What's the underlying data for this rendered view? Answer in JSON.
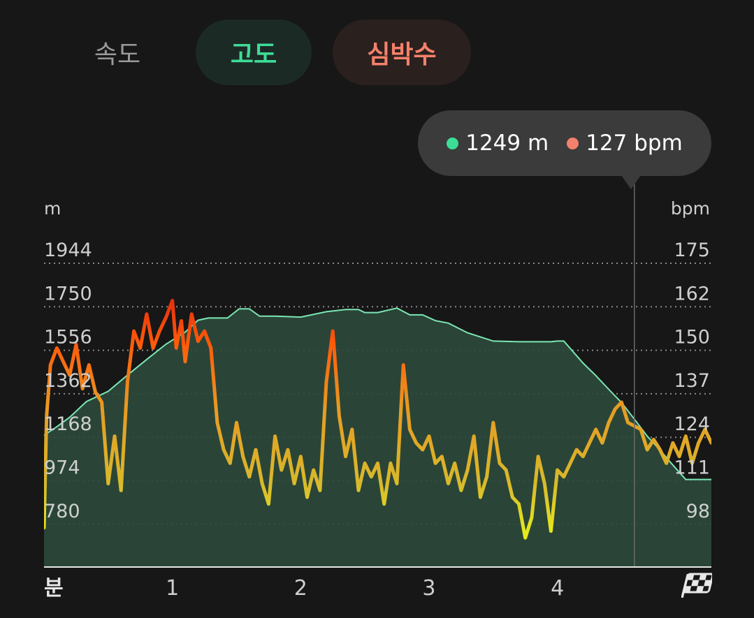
{
  "tabs": {
    "speed": "속도",
    "altitude": "고도",
    "heart_rate": "심박수"
  },
  "colors": {
    "altitude": "#3ddc97",
    "heart_rate": "#f4816b",
    "area_fill": "#2c4a3b",
    "text_muted": "#cfcfcf"
  },
  "tooltip": {
    "altitude_value": "1249 m",
    "heart_rate_value": "127 bpm",
    "time_min": 4.6
  },
  "finish_icon": "checkered-flag-icon",
  "chart_data": {
    "type": "area",
    "xlabel": "분",
    "ylabel_left": "m",
    "ylabel_right": "bpm",
    "x_range": [
      0,
      5.2
    ],
    "x_ticks": [
      1,
      2,
      3,
      4
    ],
    "x_tick_labels": [
      "1",
      "2",
      "3",
      "4"
    ],
    "y_left_range": [
      586,
      1944
    ],
    "y_right_range": [
      85,
      175
    ],
    "y_left_ticks": [
      1944,
      1750,
      1556,
      1362,
      1168,
      974,
      780
    ],
    "y_right_ticks": [
      175,
      162,
      150,
      137,
      124,
      111,
      98
    ],
    "grid": true,
    "series": [
      {
        "name": "고도",
        "axis": "left",
        "x": [
          0,
          0.1,
          0.2,
          0.33,
          0.5,
          0.65,
          0.8,
          0.95,
          1.1,
          1.2,
          1.28,
          1.43,
          1.52,
          1.6,
          1.68,
          1.8,
          2.0,
          2.2,
          2.35,
          2.45,
          2.5,
          2.6,
          2.75,
          2.85,
          2.95,
          3.05,
          3.15,
          3.3,
          3.5,
          3.7,
          3.95,
          4.0,
          4.05,
          4.2,
          4.3,
          4.4,
          4.5,
          4.6,
          4.7,
          4.8,
          4.88,
          5.0,
          5.2
        ],
        "values": [
          1177,
          1215,
          1257,
          1327,
          1373,
          1445,
          1515,
          1583,
          1637,
          1690,
          1700,
          1700,
          1741,
          1741,
          1708,
          1708,
          1704,
          1728,
          1738,
          1738,
          1724,
          1724,
          1744,
          1714,
          1714,
          1688,
          1677,
          1634,
          1597,
          1594,
          1594,
          1597,
          1597,
          1499,
          1443,
          1382,
          1323,
          1249,
          1173,
          1111,
          1057,
          980,
          980
        ]
      },
      {
        "name": "심박수",
        "axis": "right",
        "x": [
          0,
          0.02,
          0.05,
          0.1,
          0.15,
          0.2,
          0.25,
          0.3,
          0.35,
          0.4,
          0.45,
          0.5,
          0.55,
          0.6,
          0.65,
          0.7,
          0.75,
          0.8,
          0.85,
          0.9,
          0.95,
          1.0,
          1.03,
          1.07,
          1.1,
          1.15,
          1.2,
          1.25,
          1.3,
          1.35,
          1.4,
          1.45,
          1.5,
          1.55,
          1.6,
          1.65,
          1.7,
          1.75,
          1.8,
          1.85,
          1.9,
          1.95,
          2.0,
          2.05,
          2.1,
          2.15,
          2.2,
          2.25,
          2.3,
          2.35,
          2.4,
          2.45,
          2.5,
          2.55,
          2.6,
          2.65,
          2.7,
          2.75,
          2.8,
          2.85,
          2.9,
          2.95,
          3.0,
          3.05,
          3.1,
          3.15,
          3.2,
          3.25,
          3.3,
          3.35,
          3.4,
          3.45,
          3.5,
          3.55,
          3.6,
          3.65,
          3.7,
          3.75,
          3.8,
          3.85,
          3.9,
          3.95,
          4.0,
          4.05,
          4.1,
          4.15,
          4.2,
          4.25,
          4.3,
          4.35,
          4.4,
          4.45,
          4.5,
          4.55,
          4.6,
          4.65,
          4.7,
          4.75,
          4.8,
          4.85,
          4.9,
          4.95,
          5.0,
          5.05,
          5.1,
          5.15,
          5.2
        ],
        "values": [
          97,
          130,
          145,
          150,
          146,
          142,
          151,
          138,
          145,
          137,
          134,
          110,
          124,
          108,
          140,
          155,
          150,
          160,
          150,
          155,
          159,
          164,
          150,
          158,
          146,
          160,
          152,
          155,
          150,
          128,
          120,
          116,
          128,
          118,
          112,
          120,
          110,
          104,
          124,
          114,
          120,
          110,
          118,
          106,
          114,
          108,
          140,
          155,
          130,
          118,
          126,
          108,
          116,
          112,
          116,
          104,
          116,
          110,
          145,
          126,
          122,
          120,
          124,
          116,
          118,
          110,
          116,
          108,
          114,
          124,
          106,
          112,
          128,
          116,
          114,
          106,
          104,
          94,
          100,
          118,
          110,
          96,
          114,
          112,
          116,
          120,
          118,
          122,
          126,
          122,
          128,
          132,
          134,
          128,
          127,
          126,
          120,
          123,
          120,
          116,
          122,
          118,
          124,
          116,
          122,
          126,
          122
        ]
      }
    ]
  }
}
